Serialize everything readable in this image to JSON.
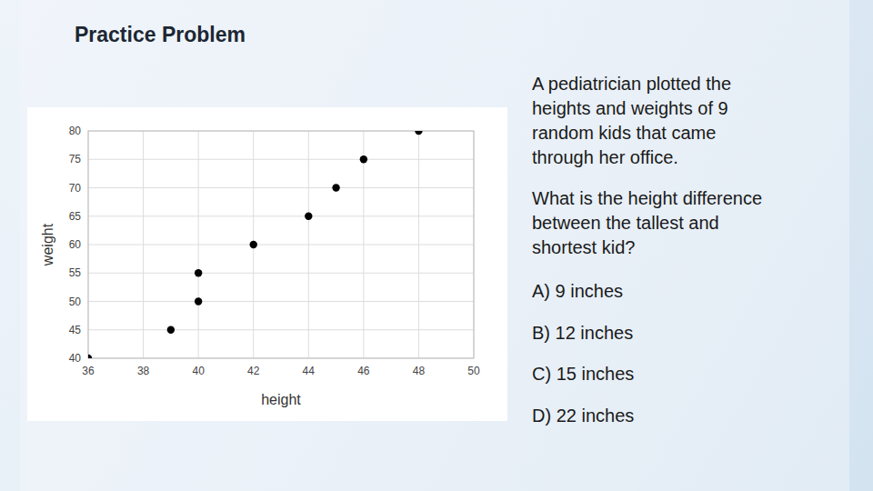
{
  "chart_data": {
    "type": "scatter",
    "x": [
      36,
      39,
      40,
      40,
      42,
      44,
      45,
      46,
      48
    ],
    "values": [
      40,
      45,
      50,
      55,
      60,
      65,
      70,
      75,
      80
    ],
    "x_label": "height",
    "y_label": "weight",
    "xlim": [
      36,
      50
    ],
    "xticks": [
      36,
      38,
      40,
      42,
      44,
      46,
      48,
      50
    ],
    "ylim": [
      40,
      80
    ],
    "yticks": [
      40,
      45,
      50,
      55,
      60,
      65,
      70,
      75,
      80
    ],
    "grid": true,
    "color": "#000000",
    "marker": "circle"
  },
  "slide": {
    "heading": "Practice Problem",
    "intro_lines": [
      "A pediatrician plotted the",
      "heights and weights of 9",
      "random kids that came",
      "through her office."
    ],
    "question_lines": [
      "What is the height difference",
      "between the tallest and",
      "shortest kid?"
    ],
    "options": [
      "A) 9 inches",
      "B) 12 inches",
      "C) 15 inches",
      "D) 22 inches"
    ]
  }
}
